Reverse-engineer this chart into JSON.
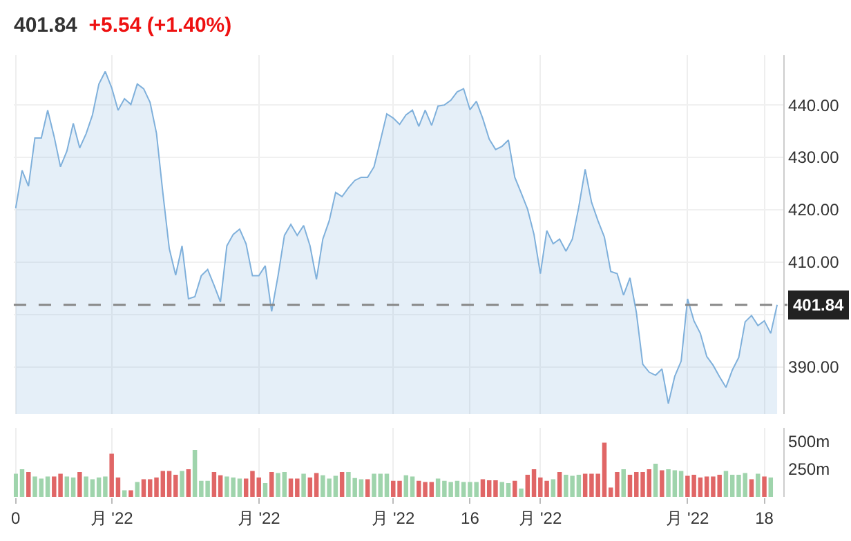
{
  "chart_data": [
    {
      "type": "area",
      "title": "401.84",
      "subtitle": "+5.54 (+1.40%)",
      "categories": [
        null,
        null,
        null,
        null,
        null,
        null,
        null,
        null,
        null,
        null,
        null,
        null,
        null,
        null,
        null,
        null,
        null,
        null,
        null,
        null,
        null,
        null,
        null,
        null,
        null,
        null,
        null,
        null,
        null,
        null,
        null,
        null,
        null,
        null,
        null,
        null,
        null,
        null,
        null,
        null,
        null,
        null,
        null,
        null,
        null,
        null,
        null,
        null,
        null,
        null,
        null,
        null,
        null,
        null,
        null,
        null,
        null,
        null,
        null,
        null,
        null,
        null,
        null,
        null,
        null,
        null,
        null,
        null,
        null,
        null,
        null,
        null,
        null,
        null,
        null,
        null,
        null,
        null,
        null,
        null,
        null,
        null,
        null,
        null,
        null,
        null,
        null,
        null,
        null,
        null,
        null,
        null,
        null,
        null,
        null,
        null,
        null,
        null,
        null,
        null,
        null,
        null,
        null,
        null,
        null,
        null,
        null,
        null,
        null,
        null,
        null,
        null,
        null,
        null,
        null,
        null,
        null,
        null,
        null,
        null
      ],
      "series": [
        {
          "color": "#7fb0db",
          "values": [
            420.3,
            427.5,
            424.5,
            433.7,
            433.7,
            439,
            434,
            428.2,
            431.2,
            436.5,
            431.8,
            434.5,
            438.1,
            444,
            446.4,
            443.3,
            439,
            441.2,
            440.1,
            444,
            443.1,
            440.5,
            434.6,
            423.2,
            412.6,
            407.5,
            413.1,
            403,
            403.4,
            407.4,
            408.6,
            405.6,
            402.4,
            413.1,
            415.3,
            416.3,
            413.5,
            407.4,
            407.4,
            409.3,
            400.6,
            407.4,
            415.1,
            417.2,
            415.1,
            417,
            413.1,
            406.7,
            414.4,
            417.9,
            423.3,
            422.5,
            424.2,
            425.6,
            426.2,
            426.2,
            428.2,
            433.2,
            438.3,
            437.5,
            436.3,
            438.1,
            439,
            435.9,
            439,
            436.1,
            439.8,
            440,
            440.9,
            442.5,
            443.1,
            439.1,
            440.7,
            437.4,
            433.5,
            431.5,
            432.1,
            433.3,
            426.2,
            423.2,
            420.1,
            415.3,
            407.8,
            416,
            413.5,
            414.4,
            412.1,
            414.4,
            420.5,
            427.7,
            421.4,
            417.9,
            414.8,
            408.2,
            407.8,
            403.7,
            407,
            400.4,
            390.5,
            389,
            388.4,
            389.6,
            383,
            388.2,
            391.1,
            403,
            398.8,
            396.4,
            392,
            390.3,
            388.1,
            386.1,
            389.4,
            391.8,
            398.6,
            399.8,
            397.9,
            398.8,
            396.4,
            401.84
          ]
        }
      ],
      "ylim": [
        381,
        449.5
      ],
      "yticks": [
        {
          "value": 390,
          "label": "390.00"
        },
        {
          "value": 400,
          "label": null
        },
        {
          "value": 410,
          "label": "410.00"
        },
        {
          "value": 420,
          "label": "420.00"
        },
        {
          "value": 430,
          "label": "430.00"
        },
        {
          "value": 440,
          "label": "440.00"
        }
      ],
      "ref_lines": [
        {
          "axis": "y",
          "value": 401.84,
          "label": "401.84",
          "color": "#888888",
          "line_style": "dashed"
        }
      ],
      "grid": true,
      "tick_labels": "y",
      "marker": "none"
    },
    {
      "type": "bar",
      "categories": [
        "0",
        null,
        null,
        null,
        null,
        null,
        null,
        null,
        null,
        null,
        null,
        null,
        null,
        null,
        null,
        "月 '22",
        null,
        null,
        null,
        null,
        null,
        null,
        null,
        null,
        null,
        null,
        null,
        null,
        null,
        null,
        null,
        null,
        null,
        null,
        null,
        null,
        null,
        null,
        "月 '22",
        null,
        null,
        null,
        null,
        null,
        null,
        null,
        null,
        null,
        null,
        null,
        null,
        null,
        null,
        null,
        null,
        null,
        null,
        null,
        null,
        "月 '22",
        null,
        null,
        null,
        null,
        null,
        null,
        null,
        null,
        null,
        null,
        null,
        "16",
        null,
        null,
        null,
        null,
        null,
        null,
        null,
        null,
        null,
        null,
        "月 '22",
        null,
        null,
        null,
        null,
        null,
        null,
        null,
        null,
        null,
        null,
        null,
        null,
        null,
        null,
        null,
        null,
        null,
        null,
        null,
        null,
        null,
        null,
        "月 '22",
        null,
        null,
        null,
        null,
        null,
        null,
        null,
        null,
        null,
        null,
        null,
        "18",
        null,
        null
      ],
      "values": [
        210,
        250,
        225,
        185,
        165,
        185,
        185,
        210,
        185,
        175,
        225,
        185,
        160,
        175,
        185,
        390,
        175,
        60,
        60,
        135,
        160,
        160,
        175,
        235,
        235,
        200,
        235,
        250,
        425,
        145,
        145,
        225,
        195,
        185,
        175,
        165,
        165,
        235,
        175,
        125,
        225,
        215,
        225,
        165,
        165,
        210,
        175,
        215,
        195,
        165,
        190,
        225,
        225,
        170,
        160,
        160,
        210,
        210,
        210,
        145,
        145,
        195,
        185,
        145,
        135,
        135,
        165,
        145,
        135,
        145,
        135,
        135,
        135,
        160,
        150,
        150,
        135,
        125,
        145,
        75,
        200,
        250,
        175,
        145,
        160,
        225,
        200,
        190,
        200,
        210,
        210,
        210,
        490,
        85,
        225,
        250,
        200,
        225,
        225,
        250,
        300,
        240,
        250,
        240,
        235,
        190,
        200,
        175,
        185,
        185,
        200,
        235,
        200,
        200,
        215,
        160,
        210,
        185,
        175,
        null
      ],
      "colors": [
        "#9fd4ac",
        "#9fd4ac",
        "#e06666",
        "#9fd4ac",
        "#9fd4ac",
        "#9fd4ac",
        "#e06666",
        "#e06666",
        "#9fd4ac",
        "#9fd4ac",
        "#e06666",
        "#9fd4ac",
        "#9fd4ac",
        "#9fd4ac",
        "#9fd4ac",
        "#e06666",
        "#e06666",
        "#9fd4ac",
        "#e06666",
        "#9fd4ac",
        "#e06666",
        "#e06666",
        "#e06666",
        "#e06666",
        "#e06666",
        "#e06666",
        "#9fd4ac",
        "#e06666",
        "#9fd4ac",
        "#9fd4ac",
        "#9fd4ac",
        "#e06666",
        "#e06666",
        "#9fd4ac",
        "#9fd4ac",
        "#9fd4ac",
        "#e06666",
        "#e06666",
        "#e06666",
        "#9fd4ac",
        "#e06666",
        "#9fd4ac",
        "#9fd4ac",
        "#e06666",
        "#e06666",
        "#9fd4ac",
        "#e06666",
        "#e06666",
        "#9fd4ac",
        "#9fd4ac",
        "#9fd4ac",
        "#e06666",
        "#9fd4ac",
        "#9fd4ac",
        "#9fd4ac",
        "#e06666",
        "#9fd4ac",
        "#9fd4ac",
        "#9fd4ac",
        "#e06666",
        "#e06666",
        "#9fd4ac",
        "#9fd4ac",
        "#e06666",
        "#e06666",
        "#e06666",
        "#9fd4ac",
        "#9fd4ac",
        "#9fd4ac",
        "#9fd4ac",
        "#9fd4ac",
        "#9fd4ac",
        "#9fd4ac",
        "#e06666",
        "#e06666",
        "#e06666",
        "#9fd4ac",
        "#9fd4ac",
        "#e06666",
        "#9fd4ac",
        "#e06666",
        "#e06666",
        "#e06666",
        "#e06666",
        "#9fd4ac",
        "#e06666",
        "#9fd4ac",
        "#9fd4ac",
        "#9fd4ac",
        "#e06666",
        "#e06666",
        "#e06666",
        "#e06666",
        "#e06666",
        "#e06666",
        "#9fd4ac",
        "#e06666",
        "#e06666",
        "#e06666",
        "#e06666",
        "#9fd4ac",
        "#e06666",
        "#9fd4ac",
        "#9fd4ac",
        "#9fd4ac",
        "#e06666",
        "#e06666",
        "#e06666",
        "#e06666",
        "#e06666",
        "#e06666",
        "#9fd4ac",
        "#9fd4ac",
        "#9fd4ac",
        "#9fd4ac",
        "#e06666",
        "#9fd4ac",
        "#e06666",
        "#9fd4ac",
        "#9fd4ac"
      ],
      "ylim": [
        0,
        625
      ],
      "yticks": [
        {
          "value": 250,
          "label": "250m"
        },
        {
          "value": 500,
          "label": "500m"
        }
      ],
      "grid": "x"
    }
  ]
}
